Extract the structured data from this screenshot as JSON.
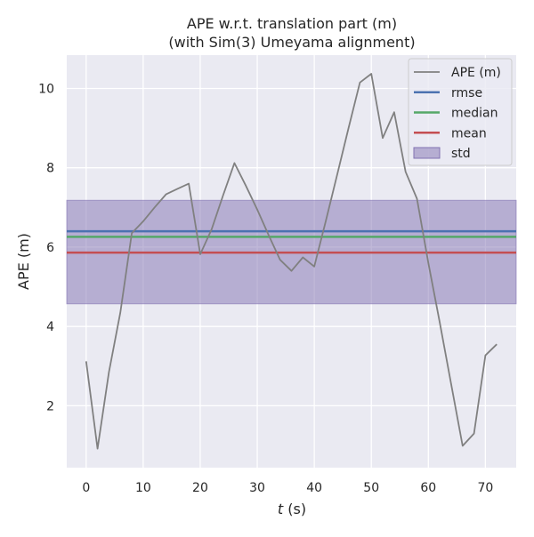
{
  "chart_data": {
    "type": "line",
    "title_line1": "APE w.r.t. translation part (m)",
    "title_line2": "(with Sim(3) Umeyama alignment)",
    "xlabel_italic": "t",
    "xlabel_unit": " (s)",
    "ylabel": "APE (m)",
    "xlim": [
      -3.4,
      75.4
    ],
    "ylim": [
      0.44,
      10.84
    ],
    "xticks": [
      0,
      10,
      20,
      30,
      40,
      50,
      60,
      70
    ],
    "yticks": [
      2,
      4,
      6,
      8,
      10
    ],
    "grid": true,
    "legend_position": "top-right",
    "series": [
      {
        "name": "APE (m)",
        "color": "#808080",
        "x": [
          0,
          2,
          4,
          6,
          8,
          10,
          12,
          14,
          16,
          18,
          20,
          22,
          24,
          26,
          28,
          30,
          32,
          34,
          36,
          38,
          40,
          42,
          44,
          46,
          48,
          50,
          52,
          54,
          56,
          58,
          60,
          62,
          64,
          66,
          68,
          70,
          72
        ],
        "y": [
          3.12,
          0.92,
          2.85,
          4.35,
          6.35,
          6.65,
          7.0,
          7.33,
          7.47,
          7.6,
          5.82,
          6.45,
          7.3,
          8.12,
          7.55,
          6.95,
          6.3,
          5.68,
          5.4,
          5.74,
          5.51,
          6.65,
          7.82,
          9.0,
          10.15,
          10.37,
          8.75,
          9.4,
          7.9,
          7.22,
          5.6,
          4.1,
          2.55,
          0.99,
          1.3,
          3.27,
          3.55
        ]
      }
    ],
    "reference_lines": [
      {
        "name": "rmse",
        "value": 6.4,
        "color": "#4c72b0"
      },
      {
        "name": "median",
        "value": 6.26,
        "color": "#55a868"
      },
      {
        "name": "mean",
        "value": 5.86,
        "color": "#c44e52"
      }
    ],
    "std_band": {
      "name": "std",
      "low": 4.57,
      "high": 7.18,
      "color": "#8172b2"
    }
  }
}
